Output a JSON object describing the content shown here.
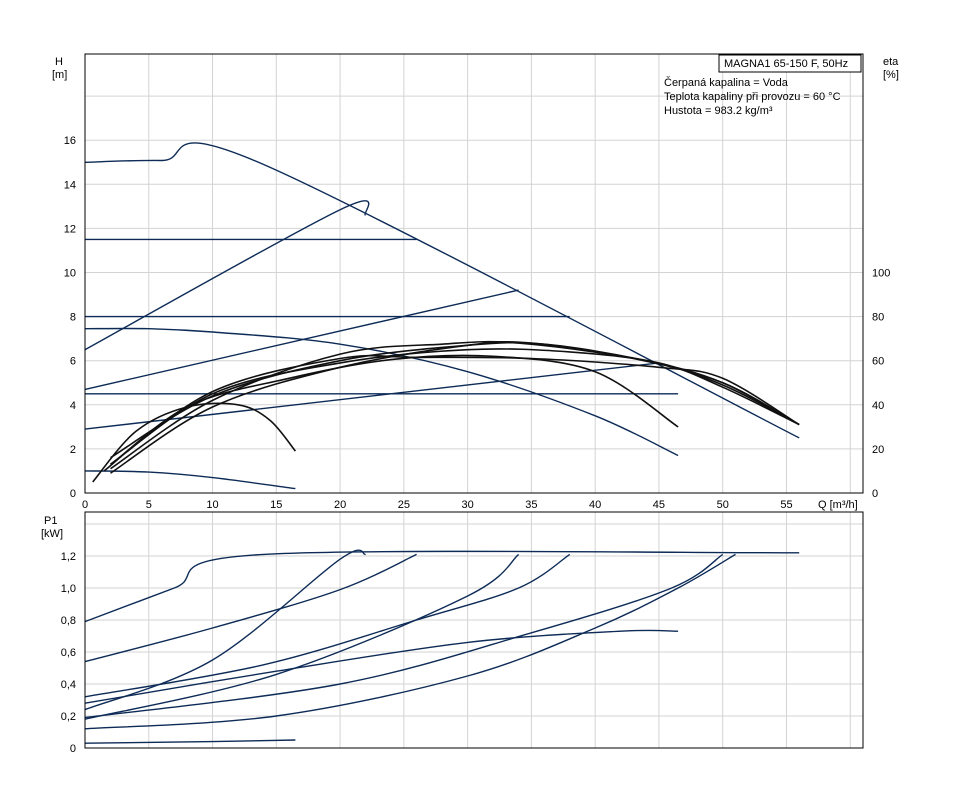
{
  "chart_data": [
    {
      "type": "line",
      "panel": "head",
      "ylabel": "H",
      "yunit": "[m]",
      "y2label": "eta",
      "y2unit": "[%]",
      "xlabel": "Q [m³/h]",
      "xlim": [
        0,
        61
      ],
      "ylim": [
        0,
        20
      ],
      "x_ticks": [
        "0",
        "5",
        "10",
        "15",
        "20",
        "25",
        "30",
        "35",
        "40",
        "45",
        "50",
        "55"
      ],
      "y_ticks": [
        "0",
        "2",
        "4",
        "6",
        "8",
        "10",
        "12",
        "14",
        "16"
      ],
      "y2_ticks": [
        "0",
        "20",
        "40",
        "60",
        "80",
        "100"
      ],
      "y2_scale": 0.1,
      "grid": true,
      "info_box": {
        "title": "MAGNA1 65-150 F, 50Hz",
        "lines": [
          "Čerpaná kapalina = Voda",
          "Teplota kapaliny při provozu = 60 °C",
          "Hustota = 983.2 kg/m³"
        ]
      },
      "series": [
        {
          "color": "navy",
          "points": [
            [
              0,
              15
            ],
            [
              6,
              15.08
            ],
            [
              14,
              14.9
            ],
            [
              56,
              2.5
            ]
          ]
        },
        {
          "color": "navy",
          "points": [
            [
              0,
              11.5
            ],
            [
              26,
              11.5
            ]
          ]
        },
        {
          "color": "navy",
          "points": [
            [
              0,
              8
            ],
            [
              38,
              8
            ]
          ]
        },
        {
          "color": "navy",
          "points": [
            [
              0,
              4.5
            ],
            [
              46.5,
              4.5
            ]
          ]
        },
        {
          "color": "navy",
          "points": [
            [
              0,
              6.5
            ],
            [
              20,
              12.85
            ],
            [
              22,
              12.6
            ]
          ]
        },
        {
          "color": "navy",
          "points": [
            [
              0,
              4.7
            ],
            [
              34,
              9.2
            ]
          ]
        },
        {
          "color": "navy",
          "points": [
            [
              0,
              2.9
            ],
            [
              45,
              5.9
            ]
          ]
        },
        {
          "color": "navy",
          "points": [
            [
              0,
              7.45
            ],
            [
              5,
              7.45
            ],
            [
              10,
              7.3
            ],
            [
              20,
              6.75
            ],
            [
              30,
              5.5
            ],
            [
              40,
              3.5
            ],
            [
              46.5,
              1.7
            ]
          ]
        },
        {
          "color": "navy",
          "points": [
            [
              0,
              1
            ],
            [
              5,
              0.95
            ],
            [
              10,
              0.7
            ],
            [
              16.5,
              0.2
            ]
          ]
        },
        {
          "color": "black",
          "points": [
            [
              0.6,
              0.5
            ],
            [
              4,
              2.8
            ],
            [
              8,
              3.9
            ],
            [
              12,
              4.0
            ],
            [
              14.5,
              3.3
            ],
            [
              16.5,
              1.9
            ]
          ]
        },
        {
          "color": "black",
          "points": [
            [
              1.5,
              1.0
            ],
            [
              8,
              3.9
            ],
            [
              16,
              5.2
            ],
            [
              24,
              6.05
            ],
            [
              32,
              6.2
            ],
            [
              40,
              5.5
            ],
            [
              46.5,
              3.0
            ]
          ]
        },
        {
          "color": "black",
          "points": [
            [
              2,
              1.3
            ],
            [
              10,
              4.5
            ],
            [
              20,
              5.9
            ],
            [
              30,
              6.5
            ],
            [
              38,
              6.4
            ],
            [
              45,
              5.9
            ],
            [
              50,
              4.8
            ],
            [
              56,
              3.1
            ]
          ]
        },
        {
          "color": "black",
          "points": [
            [
              2,
              1.6
            ],
            [
              10,
              4.4
            ],
            [
              20,
              6.0
            ],
            [
              30,
              6.7
            ],
            [
              36,
              6.75
            ],
            [
              44,
              6.0
            ],
            [
              50,
              5.0
            ],
            [
              56,
              3.1
            ]
          ]
        },
        {
          "color": "black",
          "points": [
            [
              2,
              0.9
            ],
            [
              10,
              3.9
            ],
            [
              20,
              5.7
            ],
            [
              30,
              6.7
            ],
            [
              35,
              6.8
            ],
            [
              43,
              6.1
            ],
            [
              50,
              5.0
            ],
            [
              56,
              3.1
            ]
          ]
        },
        {
          "color": "black",
          "points": [
            [
              2,
              1.1
            ],
            [
              10,
              4.2
            ],
            [
              20,
              6.3
            ],
            [
              28,
              6.75
            ],
            [
              34,
              6.8
            ],
            [
              44,
              6.0
            ],
            [
              50,
              4.9
            ],
            [
              56,
              3.1
            ]
          ]
        },
        {
          "color": "black",
          "points": [
            [
              2,
              1.3
            ],
            [
              10,
              4.6
            ],
            [
              20,
              6.1
            ],
            [
              26,
              6.15
            ],
            [
              35,
              6.1
            ],
            [
              45,
              5.7
            ],
            [
              50,
              5.2
            ],
            [
              56,
              3.1
            ]
          ]
        }
      ]
    },
    {
      "type": "line",
      "panel": "power",
      "ylabel": "P1",
      "yunit": "[kW]",
      "xlim": [
        0,
        61
      ],
      "ylim": [
        0,
        1.4
      ],
      "y_ticks": [
        "0",
        "0,2",
        "0,4",
        "0,6",
        "0,8",
        "1,0",
        "1,2"
      ],
      "grid": true,
      "series": [
        {
          "color": "navy",
          "points": [
            [
              0,
              0.79
            ],
            [
              7,
              1.0
            ],
            [
              14,
              1.21
            ],
            [
              56,
              1.22
            ]
          ]
        },
        {
          "color": "navy",
          "points": [
            [
              0,
              0.54
            ],
            [
              10,
              0.75
            ],
            [
              20,
              0.99
            ],
            [
              26,
              1.21
            ]
          ]
        },
        {
          "color": "navy",
          "points": [
            [
              0,
              0.32
            ],
            [
              14,
              0.52
            ],
            [
              26,
              0.8
            ],
            [
              34,
              1.0
            ],
            [
              38,
              1.21
            ]
          ]
        },
        {
          "color": "navy",
          "points": [
            [
              0,
              0.19
            ],
            [
              20,
              0.4
            ],
            [
              35,
              0.72
            ],
            [
              46,
              1.0
            ],
            [
              50,
              1.21
            ]
          ]
        },
        {
          "color": "navy",
          "points": [
            [
              0,
              0.12
            ],
            [
              15,
              0.2
            ],
            [
              30,
              0.45
            ],
            [
              40,
              0.75
            ],
            [
              46.5,
              1.0
            ],
            [
              51,
              1.21
            ]
          ]
        },
        {
          "color": "navy",
          "points": [
            [
              0,
              0.24
            ],
            [
              10,
              0.55
            ],
            [
              20,
              1.18
            ],
            [
              22,
              1.21
            ]
          ]
        },
        {
          "color": "navy",
          "points": [
            [
              0,
              0.18
            ],
            [
              15,
              0.46
            ],
            [
              30,
              0.95
            ],
            [
              34,
              1.21
            ]
          ]
        },
        {
          "color": "navy",
          "points": [
            [
              0,
              0.28
            ],
            [
              15,
              0.48
            ],
            [
              30,
              0.66
            ],
            [
              42,
              0.73
            ],
            [
              46.5,
              0.73
            ]
          ]
        },
        {
          "color": "navy",
          "points": [
            [
              0,
              0.03
            ],
            [
              10,
              0.04
            ],
            [
              16.5,
              0.05
            ]
          ]
        }
      ]
    }
  ]
}
